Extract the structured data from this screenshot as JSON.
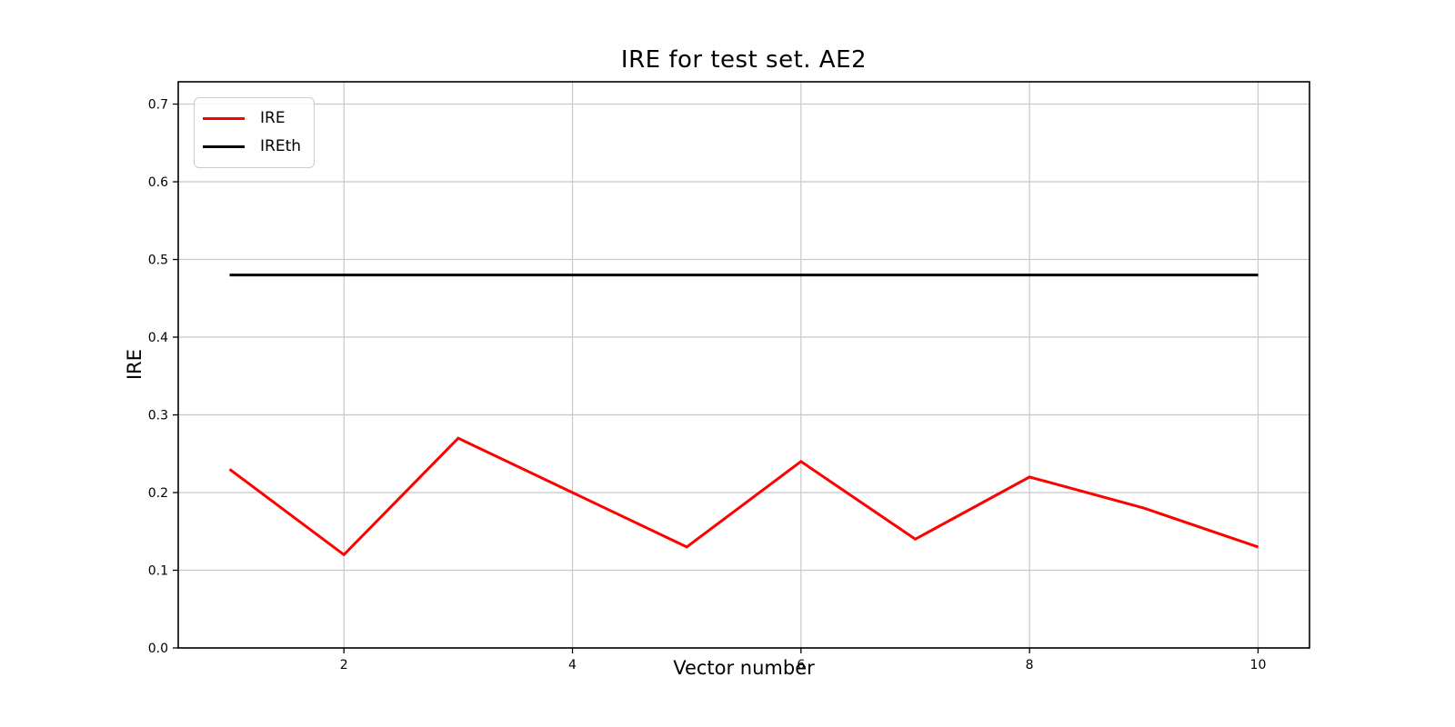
{
  "figure": {
    "background_color": "#ffffff",
    "text_color": "#000000"
  },
  "chart_data": {
    "type": "line",
    "title": "IRE for test set. AE2",
    "xlabel": "Vector number",
    "ylabel": "IRE",
    "x": [
      1,
      2,
      3,
      4,
      5,
      6,
      7,
      8,
      9,
      10
    ],
    "series": [
      {
        "name": "IRE",
        "color": "#ff0000",
        "values": [
          0.23,
          0.12,
          0.27,
          0.2,
          0.13,
          0.24,
          0.14,
          0.22,
          0.18,
          0.13
        ]
      },
      {
        "name": "IREth",
        "color": "#000000",
        "values": [
          0.48,
          0.48,
          0.48,
          0.48,
          0.48,
          0.48,
          0.48,
          0.48,
          0.48,
          0.48
        ]
      }
    ],
    "xlim": [
      0.55,
      10.45
    ],
    "ylim": [
      0.0,
      0.7287
    ],
    "xticks": [
      "2",
      "4",
      "6",
      "8",
      "10"
    ],
    "yticks": [
      "0.0",
      "0.1",
      "0.2",
      "0.3",
      "0.4",
      "0.5",
      "0.6",
      "0.7"
    ],
    "grid": true,
    "grid_color": "#c8c8c8",
    "axis_color": "#000000",
    "legend_position": "upper-left",
    "legend_entries": [
      "IRE",
      "IREth"
    ]
  }
}
